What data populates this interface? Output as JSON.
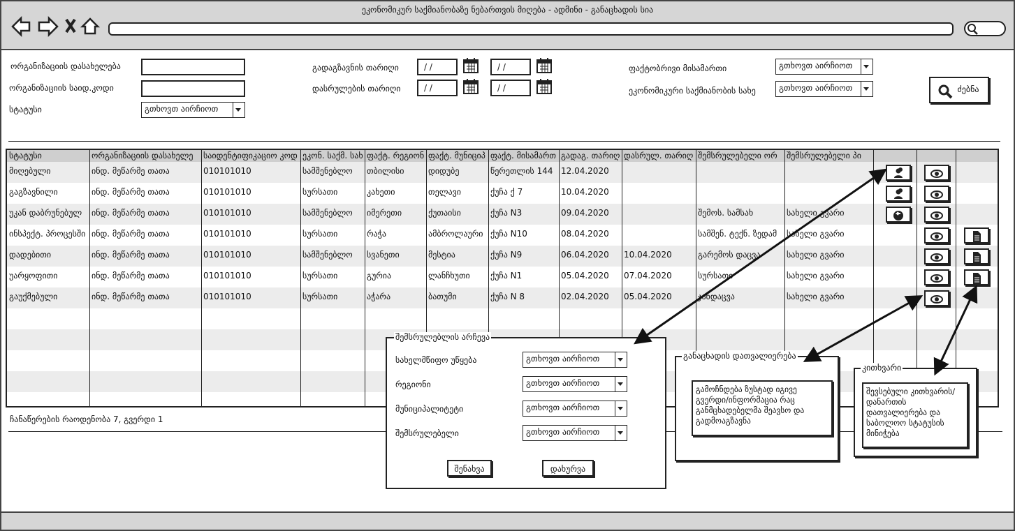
{
  "window": {
    "title": "ეკონომიკურ საქმიანობაზე ნებართვის მიღება - ადმინი - განაცხადის სია"
  },
  "filters": {
    "org_name": "ორგანიზაციის დასახელება",
    "org_code": "ორგანიზაციის საიდ.კოდი",
    "status": "სტატუსი",
    "sent_date": "გადაგზავნის თარიღი",
    "end_date": "დასრულების თარიღი",
    "address": "ფაქტობრივი მისამართი",
    "activity": "ეკონომიკური საქმიანობის სახე",
    "date_placeholder": "/ /",
    "select_placeholder": "გთხოვთ აირჩიოთ",
    "search": "ძებნა"
  },
  "table": {
    "headers": [
      "სტატუსი",
      "ორგანიზაციის დასახელე",
      "საიდენტიფიკაციო კოდ",
      "ეკონ. საქმ. სახ",
      "ფაქტ. რეგიონ",
      "ფაქტ. მუნიციპ",
      "ფაქტ. მისამართ",
      "გადაგ. თარიღ",
      "დასრულ. თარიღ",
      "შემსრულებელი ორ",
      "შემსრულებელი პი"
    ],
    "rows": [
      [
        "მიღებული",
        "ინდ. მეწარმე თათა",
        "010101010",
        "სამშენებლო",
        "თბილისი",
        "დიდუბე",
        "წერეთლის 144",
        "12.04.2020",
        null,
        null,
        null
      ],
      [
        "გაგზავნილი",
        "ინდ. მეწარმე თათა",
        "010101010",
        "სურსათი",
        "კახეთი",
        "თელავი",
        "ქუჩა ქ 7",
        "10.04.2020",
        null,
        null,
        null
      ],
      [
        "უკან დაბრუნებულ",
        "ინდ. მეწარმე თათა",
        "010101010",
        "სამშენებლო",
        "იმერეთი",
        "ქუთაისი",
        "ქუჩა N3",
        "09.04.2020",
        null,
        "შემოს. სამსახ",
        "სახელი გვარი"
      ],
      [
        "ინსპექტ. პროცესში",
        "ინდ. მეწარმე თათა",
        "010101010",
        "სურსათი",
        "რაჭა",
        "ამბროლაური",
        "ქუჩა N10",
        "08.04.2020",
        null,
        "სამშენ. ტექნ. ზედამ",
        "სახელი გვარი"
      ],
      [
        "დადებითი",
        "ინდ. მეწარმე თათა",
        "010101010",
        "სამშენებლო",
        "სვანეთი",
        "მესტია",
        "ქუჩა N9",
        "06.04.2020",
        "10.04.2020",
        "გარემოს დაცვა",
        "სახელი გვარი"
      ],
      [
        "უარყოფითი",
        "ინდ. მეწარმე თათა",
        "010101010",
        "სურსათი",
        "გურია",
        "ლანჩხუთი",
        "ქუჩა N1",
        "05.04.2020",
        "07.04.2020",
        "სურსათი",
        "სახელი გვარი"
      ],
      [
        "გაუქმებული",
        "ინდ. მეწარმე თათა",
        "010101010",
        "სურსათი",
        "აჭარა",
        "ბათუმი",
        "ქუჩა N 8",
        "02.04.2020",
        "05.04.2020",
        "ჯანდაცვა",
        "სახელი გვარი"
      ]
    ],
    "footer": "ჩანაწერების რაოდენობა 7, გვერდი 1"
  },
  "dialog": {
    "title": "შემსრულებლის არჩევა",
    "fields": [
      "სახელმწიფო უწყება",
      "რეგიონი",
      "მუნიციპალიტეტი",
      "შემსრულებელი"
    ],
    "save": "შენახვა",
    "close": "დახურვა"
  },
  "notes": [
    {
      "title": "განაცხადის დათვალიერება",
      "text": "გამოჩნდება ზუსტად იგივე გვერდი/ინფორმაცია რაც განმცხადებელმა შეავსო და გადმოაგზავნა"
    },
    {
      "title": "კითხვარი",
      "text": "შევსებული კითხვარის/დანართის დათვალიერება და საბოლოო სტატუსის მინიჭება"
    }
  ]
}
